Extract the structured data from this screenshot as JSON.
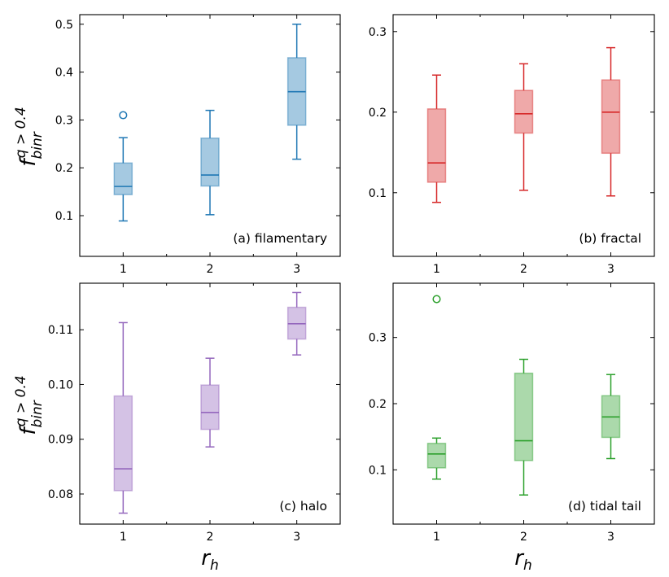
{
  "chart_data": [
    {
      "type": "box",
      "panel_label": "(a) filamentary",
      "color": "#1f77b4",
      "x": [
        1,
        2,
        3
      ],
      "ylim": [
        0.015,
        0.52
      ],
      "yticks": [
        0.1,
        0.2,
        0.3,
        0.4,
        0.5
      ],
      "ytick_labels": [
        "0.1",
        "0.2",
        "0.3",
        "0.4",
        "0.5"
      ],
      "boxes": [
        {
          "x": 1,
          "whisker_low": 0.089,
          "q1": 0.144,
          "median": 0.161,
          "q3": 0.21,
          "whisker_high": 0.263,
          "outliers": [
            0.31
          ]
        },
        {
          "x": 2,
          "whisker_low": 0.102,
          "q1": 0.162,
          "median": 0.185,
          "q3": 0.262,
          "whisker_high": 0.32,
          "outliers": []
        },
        {
          "x": 3,
          "whisker_low": 0.218,
          "q1": 0.289,
          "median": 0.359,
          "q3": 0.43,
          "whisker_high": 0.5,
          "outliers": []
        }
      ]
    },
    {
      "type": "box",
      "panel_label": "(b) fractal",
      "color": "#d62728",
      "x": [
        1,
        2,
        3
      ],
      "ylim": [
        0.021,
        0.321
      ],
      "yticks": [
        0.1,
        0.2,
        0.3
      ],
      "ytick_labels": [
        "0.1",
        "0.2",
        "0.3"
      ],
      "boxes": [
        {
          "x": 1,
          "whisker_low": 0.088,
          "q1": 0.113,
          "median": 0.137,
          "q3": 0.204,
          "whisker_high": 0.246,
          "outliers": []
        },
        {
          "x": 2,
          "whisker_low": 0.103,
          "q1": 0.174,
          "median": 0.198,
          "q3": 0.227,
          "whisker_high": 0.26,
          "outliers": []
        },
        {
          "x": 3,
          "whisker_low": 0.096,
          "q1": 0.149,
          "median": 0.2,
          "q3": 0.24,
          "whisker_high": 0.28,
          "outliers": []
        }
      ]
    },
    {
      "type": "box",
      "panel_label": "(c) halo",
      "color": "#9467bd",
      "x": [
        1,
        2,
        3
      ],
      "ylim": [
        0.0745,
        0.1185
      ],
      "yticks": [
        0.08,
        0.09,
        0.1,
        0.11
      ],
      "ytick_labels": [
        "0.08",
        "0.09",
        "0.10",
        "0.11"
      ],
      "boxes": [
        {
          "x": 1,
          "whisker_low": 0.0765,
          "q1": 0.0806,
          "median": 0.0846,
          "q3": 0.0979,
          "whisker_high": 0.1113,
          "outliers": []
        },
        {
          "x": 2,
          "whisker_low": 0.0886,
          "q1": 0.0918,
          "median": 0.0949,
          "q3": 0.0999,
          "whisker_high": 0.1048,
          "outliers": []
        },
        {
          "x": 3,
          "whisker_low": 0.1054,
          "q1": 0.1083,
          "median": 0.1111,
          "q3": 0.1141,
          "whisker_high": 0.1168,
          "outliers": []
        }
      ]
    },
    {
      "type": "box",
      "panel_label": "(d) tidal tail",
      "color": "#2ca02c",
      "x": [
        1,
        2,
        3
      ],
      "ylim": [
        0.018,
        0.382
      ],
      "yticks": [
        0.1,
        0.2,
        0.3
      ],
      "ytick_labels": [
        "0.1",
        "0.2",
        "0.3"
      ],
      "boxes": [
        {
          "x": 1,
          "whisker_low": 0.086,
          "q1": 0.103,
          "median": 0.124,
          "q3": 0.14,
          "whisker_high": 0.148,
          "outliers": [
            0.358
          ]
        },
        {
          "x": 2,
          "whisker_low": 0.062,
          "q1": 0.114,
          "median": 0.144,
          "q3": 0.246,
          "whisker_high": 0.267,
          "outliers": []
        },
        {
          "x": 3,
          "whisker_low": 0.117,
          "q1": 0.149,
          "median": 0.18,
          "q3": 0.212,
          "whisker_high": 0.244,
          "outliers": []
        }
      ]
    }
  ],
  "xlim": [
    0.5,
    3.5
  ],
  "xticks": [
    1,
    2,
    3
  ],
  "xtick_labels": [
    "1",
    "2",
    "3"
  ],
  "xlabel": {
    "base": "r",
    "sub": "h"
  },
  "ylabel": {
    "base": "f",
    "sub": "binr",
    "sup": "q > 0.4"
  }
}
